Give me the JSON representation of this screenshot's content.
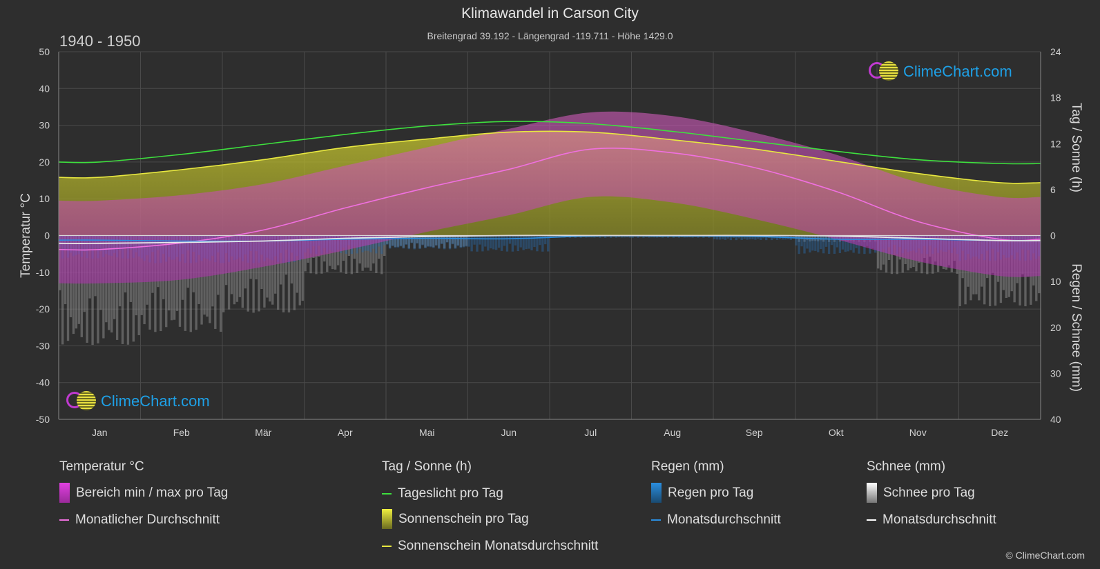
{
  "header": {
    "title": "Klimawandel in Carson City",
    "subtitle": "Breitengrad 39.192 - Längengrad -119.711 - Höhe 1429.0",
    "period": "1940 - 1950"
  },
  "axes": {
    "left_label": "Temperatur °C",
    "right_top_label": "Tag / Sonne (h)",
    "right_bottom_label": "Regen / Schnee (mm)",
    "left_ticks": [
      "50",
      "40",
      "30",
      "20",
      "10",
      "0",
      "-10",
      "-20",
      "-30",
      "-40",
      "-50"
    ],
    "right_top_ticks": [
      "24",
      "18",
      "12",
      "6",
      "0"
    ],
    "right_bottom_ticks": [
      "10",
      "20",
      "30",
      "40"
    ],
    "months": [
      "Jan",
      "Feb",
      "Mär",
      "Apr",
      "Mai",
      "Jun",
      "Jul",
      "Aug",
      "Sep",
      "Okt",
      "Nov",
      "Dez"
    ]
  },
  "chart_data": {
    "type": "line",
    "temp_range_c": [
      -50,
      50
    ],
    "sun_range_h": [
      0,
      24
    ],
    "precip_range_mm": [
      0,
      40
    ],
    "categories": [
      "Jan",
      "Feb",
      "Mär",
      "Apr",
      "Mai",
      "Jun",
      "Jul",
      "Aug",
      "Sep",
      "Okt",
      "Nov",
      "Dez"
    ],
    "series": [
      {
        "name": "Tageslicht pro Tag",
        "unit": "h",
        "color": "#3ee03e",
        "values": [
          9.6,
          10.6,
          11.9,
          13.2,
          14.3,
          14.9,
          14.6,
          13.6,
          12.3,
          11.0,
          9.9,
          9.4
        ]
      },
      {
        "name": "Sonnenschein Monatsdurchschnitt",
        "unit": "h",
        "color": "#e8e840",
        "values": [
          7.6,
          8.6,
          9.9,
          11.5,
          12.6,
          13.5,
          13.5,
          12.5,
          11.3,
          9.7,
          8.1,
          6.9
        ]
      },
      {
        "name": "Monatlicher Durchschnitt",
        "unit": "°C",
        "color": "#f070e0",
        "values": [
          -3.8,
          -2.0,
          1.5,
          7.5,
          13.0,
          18.0,
          23.5,
          22.5,
          18.5,
          12.0,
          3.8,
          -1.0
        ]
      },
      {
        "name": "Regen Monatsdurchschnitt",
        "unit": "mm",
        "color": "#2a8ee0",
        "values": [
          1.0,
          1.2,
          1.2,
          0.8,
          0.6,
          0.7,
          0.1,
          0.1,
          0.2,
          0.8,
          0.8,
          1.1
        ]
      },
      {
        "name": "Schnee Monatsdurchschnitt",
        "unit": "mm",
        "color": "#e8e8e8",
        "values": [
          1.7,
          1.5,
          1.2,
          0.6,
          0.2,
          0.0,
          0.0,
          0.0,
          0.0,
          0.1,
          0.6,
          1.1
        ]
      }
    ],
    "temp_band_avg_max_c": [
      9.5,
      11.0,
      14.0,
      19.0,
      24.0,
      29.0,
      33.5,
      32.5,
      28.0,
      22.0,
      14.5,
      10.5
    ],
    "temp_band_avg_min_c": [
      -13.0,
      -12.0,
      -8.5,
      -4.0,
      1.0,
      5.5,
      10.5,
      9.0,
      4.5,
      -1.0,
      -7.0,
      -11.0
    ]
  },
  "legend": {
    "groups": [
      {
        "title": "Temperatur °C",
        "items": [
          {
            "label": "Bereich min / max pro Tag",
            "swatch": "box",
            "color": "#d23cd2"
          },
          {
            "label": "Monatlicher Durchschnitt",
            "swatch": "line",
            "color": "#f070e0"
          }
        ]
      },
      {
        "title": "Tag / Sonne (h)",
        "items": [
          {
            "label": "Tageslicht pro Tag",
            "swatch": "line",
            "color": "#3ee03e"
          },
          {
            "label": "Sonnenschein pro Tag",
            "swatch": "box",
            "color": "#cccc33"
          },
          {
            "label": "Sonnenschein Monatsdurchschnitt",
            "swatch": "line",
            "color": "#e8e840"
          }
        ]
      },
      {
        "title": "Regen (mm)",
        "items": [
          {
            "label": "Regen pro Tag",
            "swatch": "box",
            "color": "#2a8ee0"
          },
          {
            "label": "Monatsdurchschnitt",
            "swatch": "line",
            "color": "#2a8ee0"
          }
        ]
      },
      {
        "title": "Schnee (mm)",
        "items": [
          {
            "label": "Schnee pro Tag",
            "swatch": "box",
            "color": "#dddddd"
          },
          {
            "label": "Monatsdurchschnitt",
            "swatch": "line",
            "color": "#ffffff"
          }
        ]
      }
    ]
  },
  "branding": {
    "logo_text": "ClimeChart.com",
    "copyright": "© ClimeChart.com"
  }
}
